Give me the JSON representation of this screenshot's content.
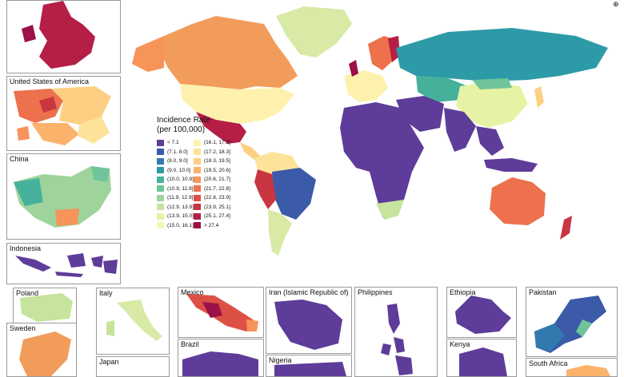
{
  "legend": {
    "title_line1": "Incidence Rate",
    "title_line2": "(per 100,000)",
    "left": [
      {
        "label": "< 7.1",
        "color": "#5e3c99"
      },
      {
        "label": "(7.1, 8.0]",
        "color": "#3b5ba8"
      },
      {
        "label": "(8.0, 9.0]",
        "color": "#3279b0"
      },
      {
        "label": "(9.0, 10.0]",
        "color": "#2d9aa8"
      },
      {
        "label": "(10.0, 10.9]",
        "color": "#45b19b"
      },
      {
        "label": "(10.9, 11.9]",
        "color": "#6fc49a"
      },
      {
        "label": "(11.9, 12.9]",
        "color": "#9ed49b"
      },
      {
        "label": "(12.9, 13.9]",
        "color": "#c6e49d"
      },
      {
        "label": "(13.9, 15.0]",
        "color": "#e6f3a4"
      },
      {
        "label": "(15.0, 16.1]",
        "color": "#f6f8b2"
      }
    ],
    "right": [
      {
        "label": "(16.1, 17.2]",
        "color": "#fdf1ad"
      },
      {
        "label": "(17.2, 18.3]",
        "color": "#fde39a"
      },
      {
        "label": "(18.3, 19.5]",
        "color": "#fdcf82"
      },
      {
        "label": "(19.5, 20.6]",
        "color": "#fbb36c"
      },
      {
        "label": "(20.6, 21.7]",
        "color": "#f6945a"
      },
      {
        "label": "(21.7, 22.8]",
        "color": "#ec714c"
      },
      {
        "label": "(22.8, 23.9]",
        "color": "#dd5045"
      },
      {
        "label": "(23.9, 25.1]",
        "color": "#ca3542"
      },
      {
        "label": "(25.1, 27.4]",
        "color": "#b51f45"
      },
      {
        "label": "> 27.4",
        "color": "#9c1148"
      }
    ]
  },
  "insets": {
    "uk": "",
    "usa": "United States of America",
    "china": "China",
    "indonesia": "Indonesia",
    "poland": "Poland",
    "sweden": "Sweden",
    "italy": "Italy",
    "japan": "Japan",
    "mexico": "Mexico",
    "brazil": "Brazil",
    "iran": "Iran (Islamic Republic of)",
    "nigeria": "Nigeria",
    "philippines": "Philippines",
    "ethiopia": "Ethiopia",
    "kenya": "Kenya",
    "pakistan": "Pakistan",
    "south_africa": "South Africa"
  },
  "compass": "⊕"
}
